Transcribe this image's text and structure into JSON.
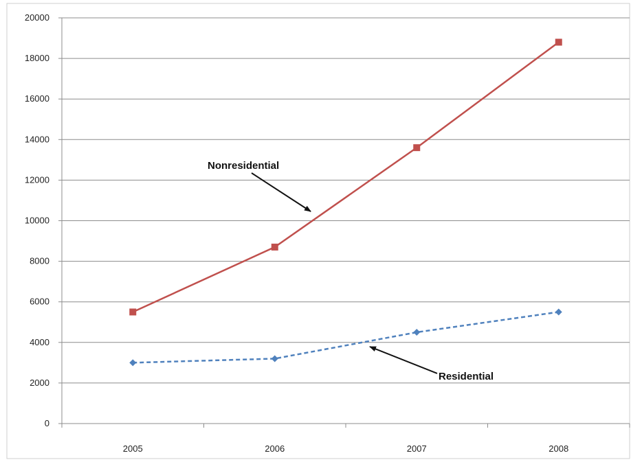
{
  "chart_data": {
    "type": "line",
    "categories": [
      "2005",
      "2006",
      "2007",
      "2008"
    ],
    "series": [
      {
        "name": "Nonresidential",
        "values": [
          5500,
          8700,
          13600,
          18800
        ],
        "color": "#c0504d",
        "dashed": false,
        "marker": "square"
      },
      {
        "name": "Residential",
        "values": [
          3000,
          3200,
          4500,
          5500
        ],
        "color": "#4f81bd",
        "dashed": true,
        "marker": "diamond"
      }
    ],
    "ylim": [
      0,
      20000
    ],
    "yticks": [
      "0",
      "2000",
      "4000",
      "6000",
      "8000",
      "10000",
      "12000",
      "14000",
      "16000",
      "18000",
      "20000"
    ],
    "grid": true,
    "annotations": [
      {
        "text": "Nonresidential",
        "series": "Nonresidential"
      },
      {
        "text": "Residential",
        "series": "Residential"
      }
    ]
  }
}
